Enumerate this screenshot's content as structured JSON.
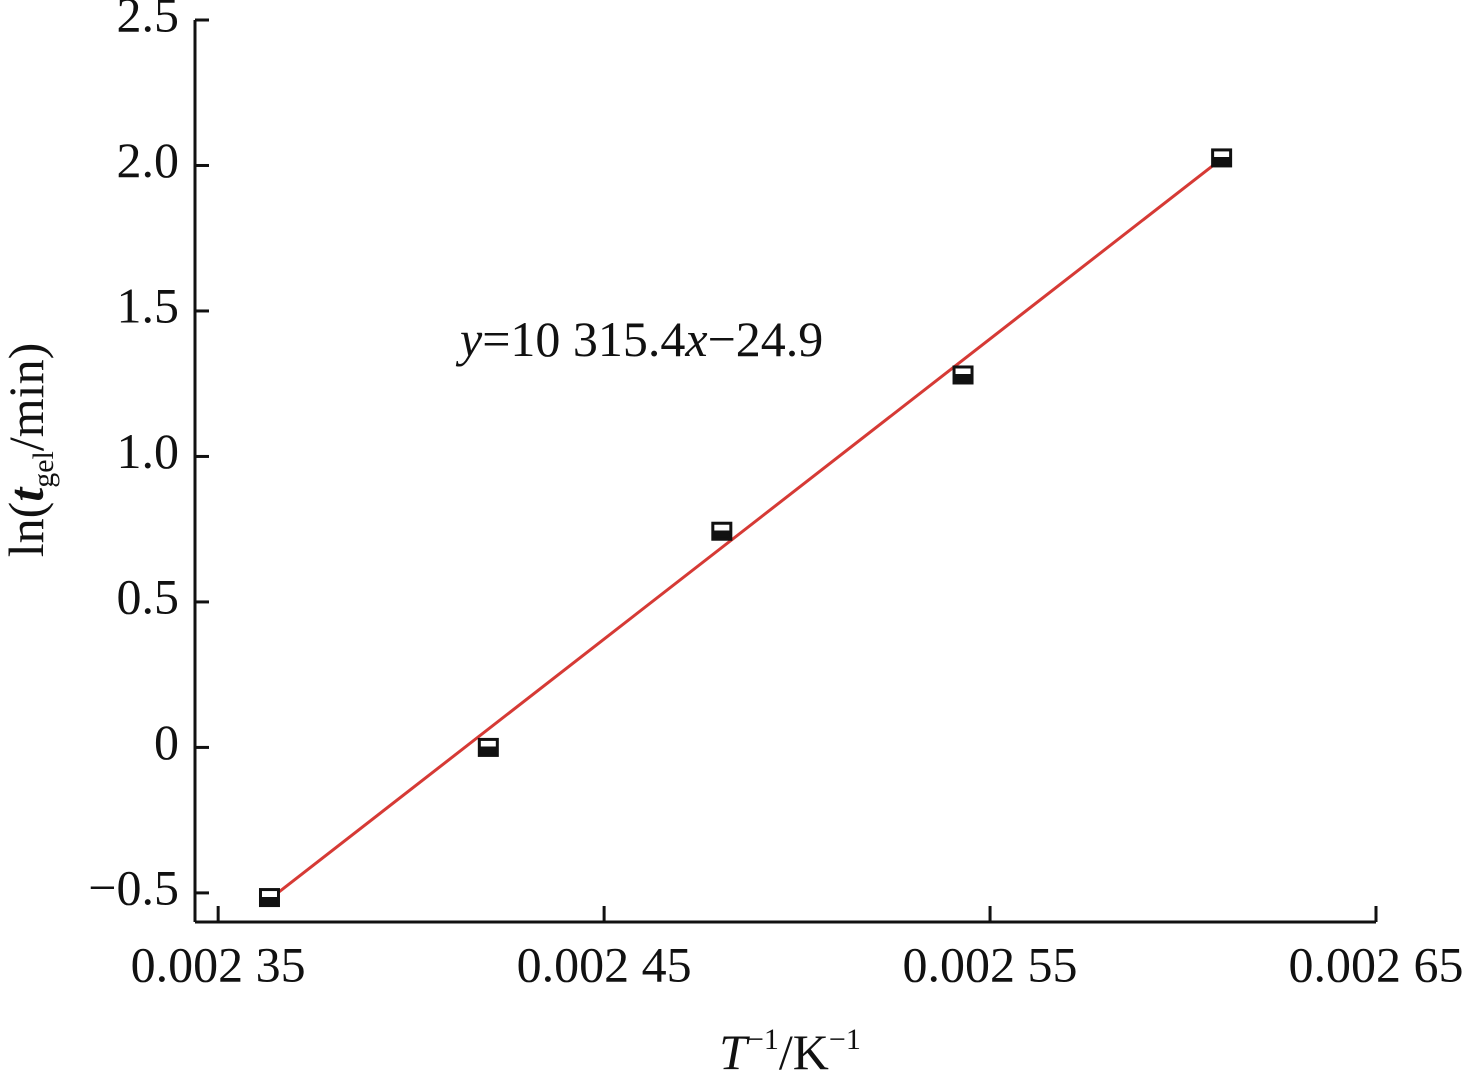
{
  "chart_data": {
    "type": "scatter",
    "x": [
      0.0023633,
      0.00242,
      0.0024805,
      0.002543,
      0.00261
    ],
    "values": [
      -0.516,
      0,
      0.743,
      1.28,
      2.026
    ],
    "color": "#111111",
    "fit_line": {
      "x": [
        0.0023633,
        0.00261
      ],
      "y": [
        -0.522,
        2.023
      ],
      "color": "#d63a35"
    },
    "annotation_parts": [
      "y",
      "=10 315.4",
      "x",
      "−24.9"
    ],
    "xlabel_parts": [
      "T",
      "−1",
      "/K",
      "−1"
    ],
    "ylabel_parts": [
      "ln(",
      "t",
      "gel",
      "/min)"
    ],
    "xlim": [
      0.002344,
      0.00265
    ],
    "ylim": [
      -0.6,
      2.5
    ],
    "xticks": [
      {
        "value": 0.00235,
        "label": "0.002 35"
      },
      {
        "value": 0.00245,
        "label": "0.002 45"
      },
      {
        "value": 0.00255,
        "label": "0.002 55"
      },
      {
        "value": 0.00265,
        "label": "0.002 65"
      }
    ],
    "yticks": [
      {
        "value": -0.5,
        "label": "−0.5"
      },
      0,
      0.5,
      {
        "value": 1,
        "label": "1.0"
      },
      1.5,
      {
        "value": 2,
        "label": "2.0"
      },
      2.5
    ],
    "grid": false
  }
}
